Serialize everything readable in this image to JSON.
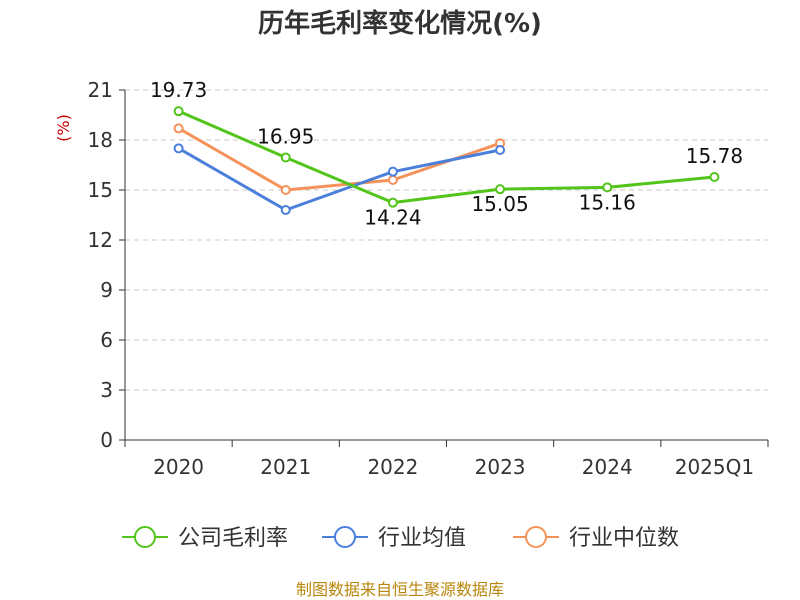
{
  "chart_data": {
    "type": "line",
    "title": "历年毛利率变化情况(%)",
    "unit_label": "(%)",
    "categories": [
      "2020",
      "2021",
      "2022",
      "2023",
      "2024",
      "2025Q1"
    ],
    "ylim": [
      0,
      21
    ],
    "yticks": [
      0,
      3,
      6,
      9,
      12,
      15,
      18,
      21
    ],
    "grid": "horizontal-dashed",
    "legend_position": "bottom",
    "series": [
      {
        "name": "公司毛利率",
        "color": "#52c41a",
        "values": [
          19.73,
          16.95,
          14.24,
          15.05,
          15.16,
          15.78
        ],
        "labels": [
          "19.73",
          "16.95",
          "14.24",
          "15.05",
          "15.16",
          "15.78"
        ]
      },
      {
        "name": "行业均值",
        "color": "#4a7fdb",
        "values": [
          17.5,
          13.8,
          16.1,
          17.4,
          null,
          null
        ]
      },
      {
        "name": "行业中位数",
        "color": "#f4925a",
        "values": [
          18.7,
          15.0,
          15.6,
          17.8,
          null,
          null
        ]
      }
    ]
  },
  "footer": {
    "source": "制图数据来自恒生聚源数据库"
  }
}
